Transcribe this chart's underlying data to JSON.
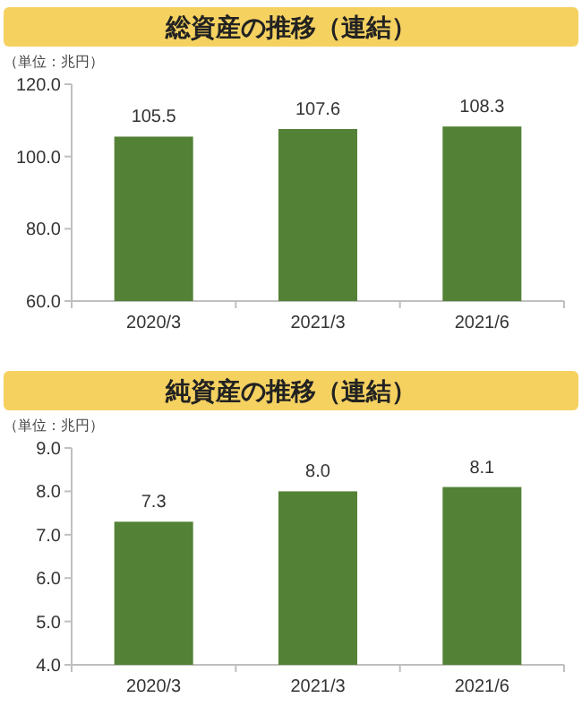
{
  "chart_data": [
    {
      "type": "bar",
      "title": "総資産の推移（連結）",
      "ylabel": "（単位：兆円）",
      "categories": [
        "2020/3",
        "2021/3",
        "2021/6"
      ],
      "values": [
        105.5,
        107.6,
        108.3
      ],
      "color": "#538135",
      "ylim": [
        60,
        120
      ],
      "yticks": [
        {
          "value": 60,
          "label": "60.0"
        },
        {
          "value": 80,
          "label": "80.0"
        },
        {
          "value": 100,
          "label": "100.0"
        },
        {
          "value": 120,
          "label": "120.0"
        }
      ],
      "data_labels": true
    },
    {
      "type": "bar",
      "title": "純資産の推移（連結）",
      "ylabel": "（単位：兆円）",
      "categories": [
        "2020/3",
        "2021/3",
        "2021/6"
      ],
      "values": [
        7.3,
        8.0,
        8.1
      ],
      "value_labels": [
        "7.3",
        "8.0",
        "8.1"
      ],
      "color": "#538135",
      "ylim": [
        4,
        9
      ],
      "yticks": [
        {
          "value": 4,
          "label": "4.0"
        },
        {
          "value": 5,
          "label": "5.0"
        },
        {
          "value": 6,
          "label": "6.0"
        },
        {
          "value": 7,
          "label": "7.0"
        },
        {
          "value": 8,
          "label": "8.0"
        },
        {
          "value": 9,
          "label": "9.0"
        }
      ]
    }
  ]
}
